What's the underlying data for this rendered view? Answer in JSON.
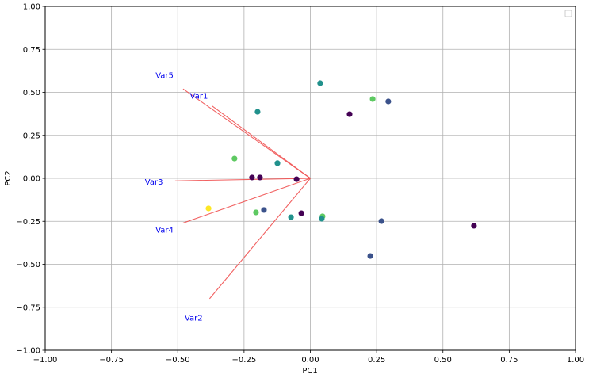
{
  "chart_data": {
    "type": "scatter",
    "title": "",
    "xlabel": "PC1",
    "ylabel": "PC2",
    "xlim": [
      -1.0,
      1.0
    ],
    "ylim": [
      -1.0,
      1.0
    ],
    "grid": true,
    "legend": {
      "position": "upper right",
      "entries": []
    },
    "xticks": [
      "-1.00",
      "-0.75",
      "-0.50",
      "-0.25",
      "0.00",
      "0.25",
      "0.50",
      "0.75",
      "1.00"
    ],
    "yticks": [
      "-1.00",
      "-0.75",
      "-0.50",
      "-0.25",
      "0.00",
      "0.25",
      "0.50",
      "0.75",
      "1.00"
    ],
    "xtick_values": [
      -1.0,
      -0.75,
      -0.5,
      -0.25,
      0.0,
      0.25,
      0.5,
      0.75,
      1.0
    ],
    "ytick_values": [
      -1.0,
      -0.75,
      -0.5,
      -0.25,
      0.0,
      0.25,
      0.5,
      0.75,
      1.0
    ],
    "points": [
      {
        "x": 0.037,
        "y": 0.553,
        "color": "#21918c"
      },
      {
        "x": -0.199,
        "y": 0.387,
        "color": "#21918c"
      },
      {
        "x": 0.148,
        "y": 0.373,
        "color": "#440154"
      },
      {
        "x": 0.235,
        "y": 0.461,
        "color": "#5ec962"
      },
      {
        "x": 0.294,
        "y": 0.447,
        "color": "#3b528b"
      },
      {
        "x": -0.286,
        "y": 0.115,
        "color": "#5ec962"
      },
      {
        "x": -0.124,
        "y": 0.088,
        "color": "#21918c"
      },
      {
        "x": -0.22,
        "y": 0.005,
        "color": "#440154"
      },
      {
        "x": -0.19,
        "y": 0.005,
        "color": "#440154"
      },
      {
        "x": -0.052,
        "y": -0.005,
        "color": "#440154"
      },
      {
        "x": -0.384,
        "y": -0.175,
        "color": "#fde725"
      },
      {
        "x": -0.205,
        "y": -0.198,
        "color": "#5ec962"
      },
      {
        "x": -0.175,
        "y": -0.184,
        "color": "#3b528b"
      },
      {
        "x": -0.073,
        "y": -0.226,
        "color": "#21918c"
      },
      {
        "x": -0.034,
        "y": -0.203,
        "color": "#440154"
      },
      {
        "x": 0.046,
        "y": -0.221,
        "color": "#5ec962"
      },
      {
        "x": 0.043,
        "y": -0.235,
        "color": "#21918c"
      },
      {
        "x": 0.268,
        "y": -0.249,
        "color": "#3b528b"
      },
      {
        "x": 0.226,
        "y": -0.452,
        "color": "#3b528b"
      },
      {
        "x": 0.617,
        "y": -0.276,
        "color": "#440154"
      }
    ],
    "loadings": [
      {
        "name": "Var1",
        "x": -0.37,
        "y": 0.42,
        "label_x": -0.42,
        "label_y": 0.48
      },
      {
        "name": "Var2",
        "x": -0.38,
        "y": -0.7,
        "label_x": -0.44,
        "label_y": -0.81
      },
      {
        "name": "Var3",
        "x": -0.51,
        "y": -0.015,
        "label_x": -0.59,
        "label_y": -0.02
      },
      {
        "name": "Var4",
        "x": -0.48,
        "y": -0.26,
        "label_x": -0.55,
        "label_y": -0.3
      },
      {
        "name": "Var5",
        "x": -0.48,
        "y": 0.52,
        "label_x": -0.55,
        "label_y": 0.6
      }
    ],
    "arrow_color": "#f05050",
    "label_color": "#0000ee"
  }
}
